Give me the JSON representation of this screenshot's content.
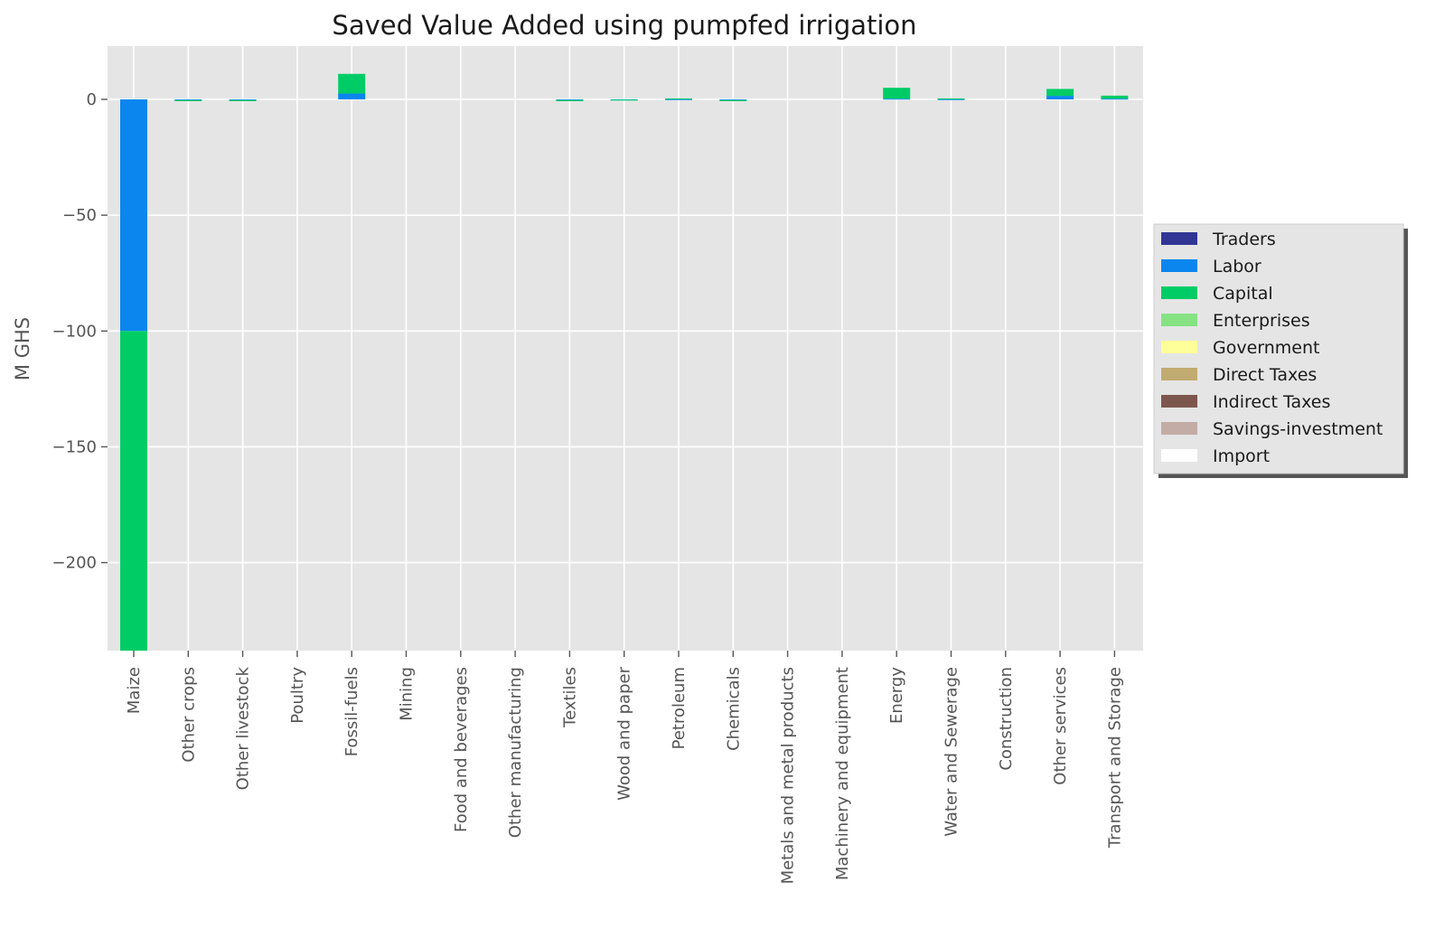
{
  "chart_data": {
    "type": "bar",
    "stacked": true,
    "title": "Saved Value Added using pumpfed irrigation",
    "xlabel": "",
    "ylabel": "M GHS",
    "ylim": [
      -238,
      23
    ],
    "yticks": [
      0,
      -50,
      -100,
      -150,
      -200
    ],
    "ytick_labels": [
      "0",
      "−50",
      "−100",
      "−150",
      "−200"
    ],
    "grid": true,
    "legend_position": "center-right-outside",
    "categories": [
      "Maize",
      "Other crops",
      "Other livestock",
      "Poultry",
      "Fossil-fuels",
      "Mining",
      "Food and beverages",
      "Other manufacturing",
      "Textiles",
      "Wood and paper",
      "Petroleum",
      "Chemicals",
      "Metals and metal products",
      "Machinery and equipment",
      "Energy",
      "Water and Sewerage",
      "Construction",
      "Other services",
      "Transport and Storage"
    ],
    "series": [
      {
        "name": "Traders",
        "color": "#313695",
        "values": [
          0,
          0,
          0,
          0,
          0,
          0,
          0,
          0,
          0,
          0,
          0,
          0,
          0,
          0,
          0,
          0,
          0,
          0,
          0
        ]
      },
      {
        "name": "Labor",
        "color": "#0a86ee",
        "values": [
          -100,
          -0.3,
          -0.3,
          0,
          2.5,
          0,
          0,
          0,
          -0.3,
          -0.1,
          0.1,
          -0.3,
          0,
          0,
          0.3,
          0.1,
          0,
          1.5,
          0.3
        ]
      },
      {
        "name": "Capital",
        "color": "#00cc66",
        "values": [
          -138,
          -0.5,
          -0.5,
          0,
          8.5,
          0,
          0,
          0,
          -0.5,
          -0.2,
          0.3,
          -0.5,
          0,
          0,
          4.7,
          0.3,
          0,
          3.0,
          1.3
        ]
      },
      {
        "name": "Enterprises",
        "color": "#86e283",
        "values": [
          0,
          0,
          0,
          0,
          0,
          0,
          0,
          0,
          0,
          0,
          0,
          0,
          0,
          0,
          0,
          0,
          0,
          0,
          0
        ]
      },
      {
        "name": "Government",
        "color": "#ffff99",
        "values": [
          0,
          0,
          0,
          0,
          0,
          0,
          0,
          0,
          0,
          0,
          0,
          0,
          0,
          0,
          0,
          0,
          0,
          0,
          0
        ]
      },
      {
        "name": "Direct Taxes",
        "color": "#c2ab71",
        "values": [
          0,
          0,
          0,
          0,
          0,
          0,
          0,
          0,
          0,
          0,
          0,
          0,
          0,
          0,
          0,
          0,
          0,
          0,
          0
        ]
      },
      {
        "name": "Indirect Taxes",
        "color": "#7d574e",
        "values": [
          0,
          0,
          0,
          0,
          0,
          0,
          0,
          0,
          0,
          0,
          0,
          0,
          0,
          0,
          0,
          0,
          0,
          0,
          0
        ]
      },
      {
        "name": "Savings-investment",
        "color": "#c3aca6",
        "values": [
          0,
          0,
          0,
          0,
          0,
          0,
          0,
          0,
          0,
          0,
          0,
          0,
          0,
          0,
          0,
          0,
          0,
          0,
          0
        ]
      },
      {
        "name": "Import",
        "color": "#ffffff",
        "values": [
          0,
          0,
          0,
          0,
          0,
          0,
          0,
          0,
          0,
          0,
          0,
          0,
          0,
          0,
          0,
          0,
          0,
          0,
          0
        ]
      }
    ]
  }
}
